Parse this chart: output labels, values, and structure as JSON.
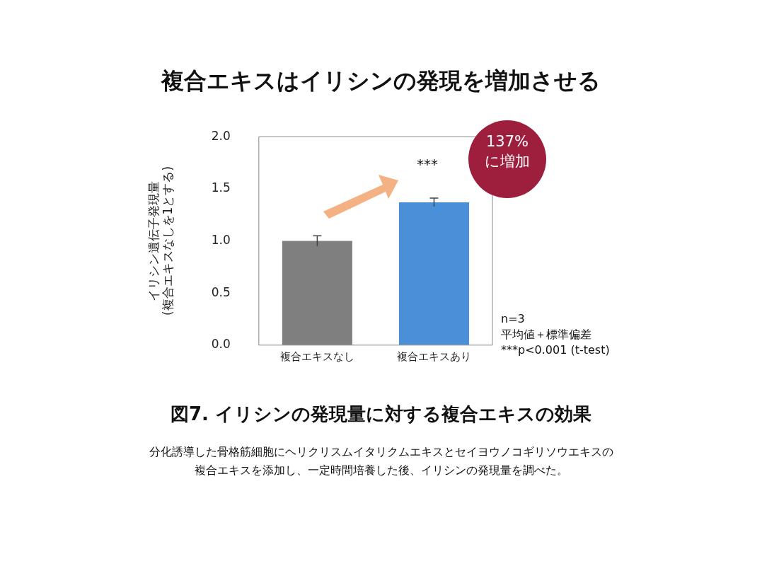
{
  "chart_data": {
    "type": "bar",
    "title": "複合エキスはイリシンの発現を増加させる",
    "ylabel": "イリシン遺伝子発現量\n(複合エキスなしを1とする)",
    "categories": [
      "複合エキスなし",
      "複合エキスあり"
    ],
    "values": [
      1.0,
      1.37
    ],
    "colors": [
      "#7f7f7f",
      "#4a90d9"
    ],
    "errors": [
      0.05,
      0.04
    ],
    "ylim": [
      0,
      2
    ],
    "yticks": [
      {
        "value": 0,
        "label": "0.0"
      },
      {
        "value": 0.5,
        "label": "0.5"
      },
      {
        "value": 1,
        "label": "1.0"
      },
      {
        "value": 1.5,
        "label": "1.5"
      },
      {
        "value": 2,
        "label": "2.0"
      }
    ],
    "grid": false,
    "legend": false,
    "annotations": [
      "***",
      "137%\nに増加",
      "n=3\n平均値＋標準偏差\n***p<0.001 (t-test)",
      "図7. イリシンの発現量に対する複合エキスの効果",
      "分化誘導した骨格筋細胞にヘリクリスムイタリクムエキスとセイヨウノコギリソウエキスの複合エキスを添加し、一定時間培養した後、イリシンの発現量を調べた。"
    ]
  }
}
